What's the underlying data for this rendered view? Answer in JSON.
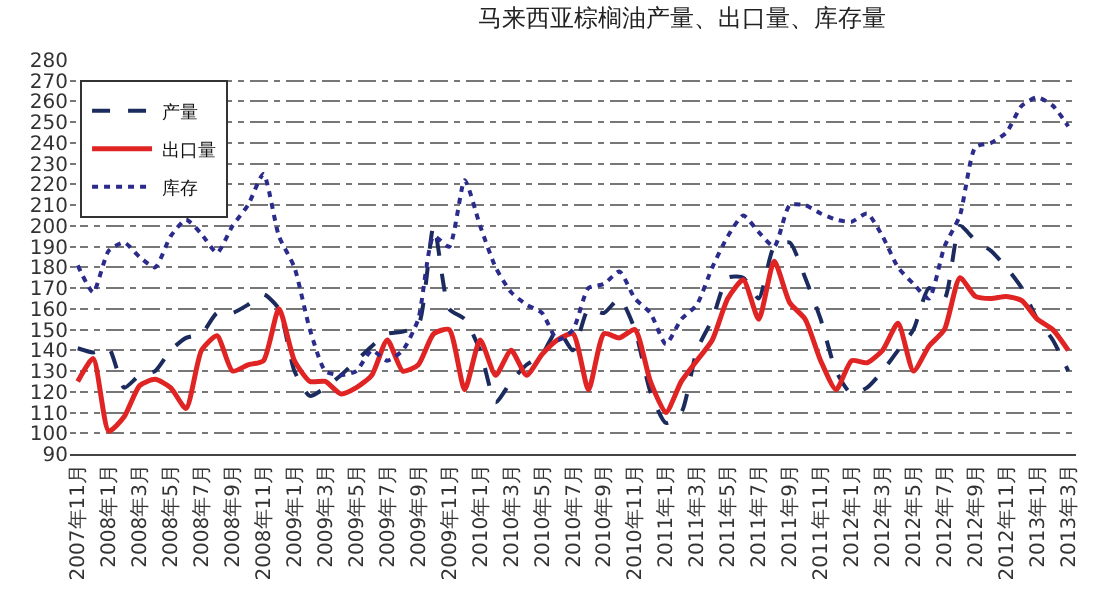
{
  "chart_data": {
    "type": "line",
    "title": "马来西亚棕榈油产量、出口量、库存量",
    "categories": [
      "2007年11月",
      null,
      "2008年1月",
      null,
      "2008年3月",
      null,
      "2008年5月",
      null,
      "2008年7月",
      null,
      "2008年9月",
      null,
      "2008年11月",
      null,
      "2009年1月",
      null,
      "2009年3月",
      null,
      "2009年5月",
      null,
      "2009年7月",
      null,
      "2009年9月",
      null,
      "2009年11月",
      null,
      "2010年1月",
      null,
      "2010年3月",
      null,
      "2010年5月",
      null,
      "2010年7月",
      null,
      "2010年9月",
      null,
      "2010年11月",
      null,
      "2011年1月",
      null,
      "2011年3月",
      null,
      "2011年5月",
      null,
      "2011年7月",
      null,
      "2011年9月",
      null,
      "2011年11月",
      null,
      "2012年1月",
      null,
      "2012年3月",
      null,
      "2012年5月",
      null,
      "2012年7月",
      null,
      "2012年9月",
      null,
      "2012年11月",
      null,
      "2013年1月",
      null,
      "2013年3月"
    ],
    "ylim": [
      90,
      280
    ],
    "yticks": [
      90,
      100,
      110,
      120,
      130,
      140,
      150,
      160,
      170,
      180,
      190,
      200,
      210,
      220,
      230,
      240,
      250,
      260,
      270,
      280
    ],
    "grid": "y",
    "legend": "top left",
    "marker": "none",
    "series": [
      {
        "name": "产量",
        "color": "#1c2b5e",
        "line_style": "dashed",
        "values": [
          141,
          139,
          141,
          122,
          128,
          130,
          140,
          146,
          148,
          158,
          158,
          162,
          167,
          160,
          130,
          118,
          122,
          128,
          135,
          142,
          148,
          149,
          152,
          200,
          160,
          155,
          140,
          115,
          125,
          133,
          138,
          150,
          140,
          160,
          158,
          165,
          150,
          120,
          105,
          110,
          140,
          155,
          175,
          175,
          165,
          190,
          192,
          175,
          155,
          130,
          119,
          122,
          130,
          140,
          150,
          170,
          165,
          200,
          193,
          188,
          180,
          170,
          155,
          145,
          130
        ]
      },
      {
        "name": "出口量",
        "color": "#e02424",
        "line_style": "solid",
        "values": [
          125,
          136,
          101,
          108,
          123,
          126,
          122,
          112,
          140,
          147,
          130,
          133,
          135,
          160,
          135,
          125,
          125,
          119,
          122,
          128,
          145,
          130,
          133,
          148,
          150,
          121,
          145,
          128,
          140,
          128,
          138,
          145,
          148,
          121,
          148,
          146,
          150,
          125,
          110,
          125,
          135,
          145,
          165,
          174,
          155,
          183,
          163,
          155,
          135,
          121,
          135,
          134,
          140,
          153,
          130,
          142,
          150,
          175,
          166,
          165,
          166,
          164,
          155,
          150,
          140
        ]
      },
      {
        "name": "库存",
        "color": "#2b2b8c",
        "line_style": "dotted",
        "values": [
          181,
          168,
          188,
          192,
          185,
          180,
          195,
          203,
          196,
          187,
          200,
          210,
          225,
          195,
          180,
          150,
          130,
          128,
          130,
          140,
          135,
          140,
          155,
          195,
          190,
          222,
          200,
          180,
          168,
          162,
          158,
          145,
          150,
          170,
          172,
          178,
          165,
          158,
          143,
          155,
          162,
          180,
          195,
          205,
          197,
          190,
          210,
          210,
          206,
          203,
          202,
          206,
          195,
          180,
          172,
          165,
          190,
          205,
          238,
          240,
          245,
          258,
          262,
          258,
          248
        ]
      }
    ]
  }
}
